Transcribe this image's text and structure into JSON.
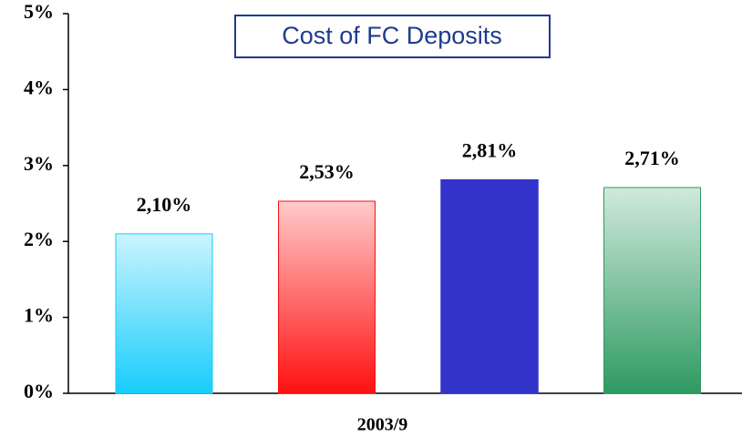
{
  "chart_data": {
    "type": "bar",
    "title": "Cost of FC Deposits",
    "categories": [
      "2003/9"
    ],
    "series": [
      {
        "color": "#18cdfb",
        "gradient": true,
        "values": [
          2.1
        ],
        "value_labels": [
          "2,10%"
        ]
      },
      {
        "color": "#ff1010",
        "gradient": true,
        "values": [
          2.53
        ],
        "value_labels": [
          "2,53%"
        ]
      },
      {
        "color": "#3333cc",
        "gradient": false,
        "values": [
          2.81
        ],
        "value_labels": [
          "2,81%"
        ]
      },
      {
        "color": "#2e9a62",
        "gradient": true,
        "values": [
          2.71
        ],
        "value_labels": [
          "2,71%"
        ]
      }
    ],
    "ylim": [
      0,
      5
    ],
    "yticks": [
      {
        "value": 0,
        "label": "0%"
      },
      {
        "value": 1,
        "label": "1%"
      },
      {
        "value": 2,
        "label": "2%"
      },
      {
        "value": 3,
        "label": "3%"
      },
      {
        "value": 4,
        "label": "4%"
      },
      {
        "value": 5,
        "label": "5%"
      }
    ],
    "grid": false
  }
}
